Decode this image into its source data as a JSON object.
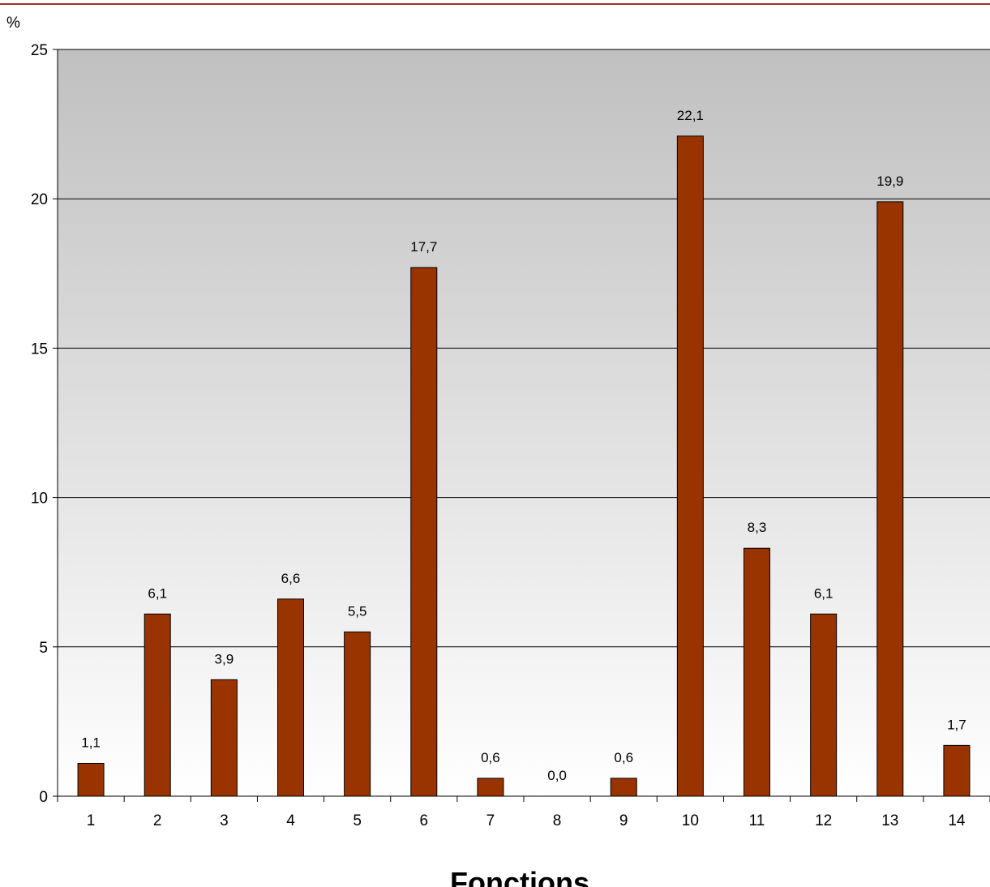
{
  "chart_data": {
    "type": "bar",
    "categories": [
      "1",
      "2",
      "3",
      "4",
      "5",
      "6",
      "7",
      "8",
      "9",
      "10",
      "11",
      "12",
      "13",
      "14"
    ],
    "values": [
      1.1,
      6.1,
      3.9,
      6.6,
      5.5,
      17.7,
      0.6,
      0.0,
      0.6,
      22.1,
      8.3,
      6.1,
      19.9,
      1.7
    ],
    "data_labels": [
      "1,1",
      "6,1",
      "3,9",
      "6,6",
      "5,5",
      "17,7",
      "0,6",
      "0,0",
      "0,6",
      "22,1",
      "8,3",
      "6,1",
      "19,9",
      "1,7"
    ],
    "xlabel": "Fonctions",
    "ylabel": "%",
    "ylim": [
      0,
      25
    ],
    "yticks": [
      "0",
      "5",
      "10",
      "15",
      "20",
      "25"
    ],
    "grid": true,
    "legend": "none",
    "colors": {
      "bar": "#993300",
      "bar_stroke": "#000000",
      "plot_bg_top": "#c0c0c0",
      "plot_bg_bottom": "#ffffff",
      "frame_line": "#a52a2a"
    }
  }
}
